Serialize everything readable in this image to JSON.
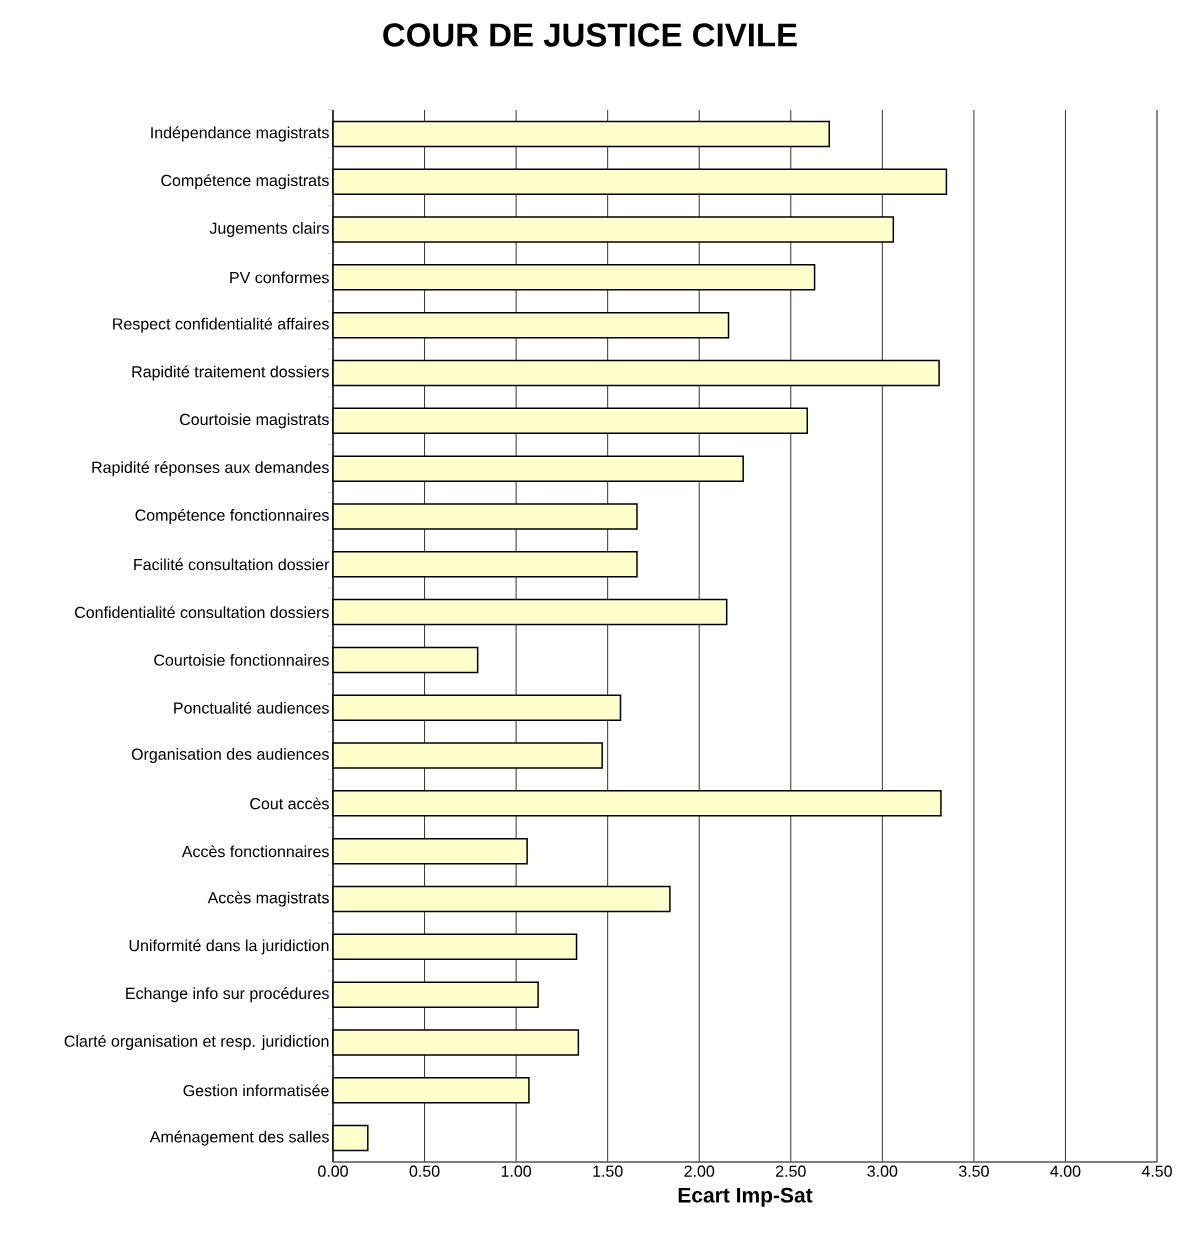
{
  "chart_data": {
    "type": "bar",
    "orientation": "horizontal",
    "title": "COUR DE JUSTICE CIVILE",
    "xlabel": "Ecart Imp-Sat",
    "categories": [
      "Indépendance magistrats",
      "Compétence magistrats",
      "Jugements clairs",
      "PV conformes",
      "Respect confidentialité affaires",
      "Rapidité traitement dossiers",
      "Courtoisie magistrats",
      "Rapidité réponses aux demandes",
      "Compétence fonctionnaires",
      "Facilité consultation dossier",
      "Confidentialité consultation dossiers",
      "Courtoisie fonctionnaires",
      "Ponctualité audiences",
      "Organisation des audiences",
      "Cout accès",
      "Accès fonctionnaires",
      "Accès magistrats",
      "Uniformité dans la juridiction",
      "Echange info sur procédures",
      "Clarté organisation et resp. juridiction",
      "Gestion informatisée",
      "Aménagement des salles"
    ],
    "values": [
      2.71,
      3.35,
      3.06,
      2.63,
      2.16,
      3.31,
      2.59,
      2.24,
      1.66,
      1.66,
      2.15,
      0.79,
      1.57,
      1.47,
      3.32,
      1.06,
      1.84,
      1.33,
      1.12,
      1.34,
      1.07,
      0.19
    ],
    "color": "#ffffcc",
    "xlim": [
      0,
      4.5
    ],
    "xticks": [
      {
        "value": 0,
        "label": "0.00"
      },
      {
        "value": 0.5,
        "label": "0.50"
      },
      {
        "value": 1,
        "label": "1.00"
      },
      {
        "value": 1.5,
        "label": "1.50"
      },
      {
        "value": 2,
        "label": "2.00"
      },
      {
        "value": 2.5,
        "label": "2.50"
      },
      {
        "value": 3,
        "label": "3.00"
      },
      {
        "value": 3.5,
        "label": "3.50"
      },
      {
        "value": 4,
        "label": "4.00"
      },
      {
        "value": 4.5,
        "label": "4.50"
      }
    ],
    "grid": "x"
  }
}
